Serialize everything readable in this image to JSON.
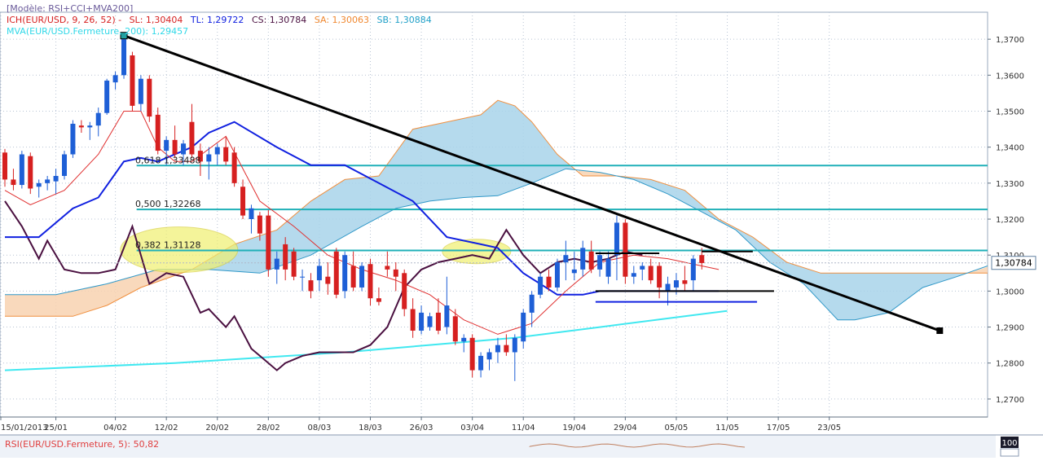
{
  "legend": {
    "model": "[Modèle: RSI+CCI+MVA200]",
    "ich_label": "ICH(EUR/USD, 9, 26, 52) -",
    "sl": "SL: 1,30404",
    "tl": "TL: 1,29722",
    "cs": "CS: 1,30784",
    "sa": "SA: 1,30063",
    "sb": "SB: 1,30884",
    "mva": "MVA(EUR/USD.Fermeture, 200): 1,29457"
  },
  "fib_labels": {
    "f618": "0,618 1,33488",
    "f500": "0,500 1,32268",
    "f382": "0,382 1,31128"
  },
  "price_badge": "1,30784",
  "rsi_label": "RSI(EUR/USD.Fermeture, 5): 50,82",
  "rsi_axis_value": "100",
  "colors": {
    "background": "#ffffff",
    "grid": "#b8c4d4",
    "up": "#1e5fd6",
    "down": "#d62020",
    "kijun": "#1020e0",
    "tenkan": "#e03030",
    "chikou": "#4a1040",
    "mva": "#40e8f0",
    "cloud_blue": "#a8d4ea",
    "cloud_orange": "#f8d2b0",
    "fib": "#20b0b8",
    "trend": "#000000",
    "highlight": "#f0f070"
  },
  "chart_data": {
    "type": "candlestick",
    "title": "",
    "y_range": [
      1.265,
      1.3775
    ],
    "y_ticks": [
      "1,2700",
      "1,2800",
      "1,2900",
      "1,3000",
      "1,3100",
      "1,3200",
      "1,3300",
      "1,3400",
      "1,3500",
      "1,3600",
      "1,3700"
    ],
    "x_ticks": [
      {
        "label": "15/01/2013",
        "i": -2
      },
      {
        "label": "25/01",
        "i": 6
      },
      {
        "label": "04/02",
        "i": 13
      },
      {
        "label": "12/02",
        "i": 19
      },
      {
        "label": "20/02",
        "i": 25
      },
      {
        "label": "28/02",
        "i": 31
      },
      {
        "label": "08/03",
        "i": 37
      },
      {
        "label": "18/03",
        "i": 43
      },
      {
        "label": "26/03",
        "i": 49
      },
      {
        "label": "03/04",
        "i": 55
      },
      {
        "label": "11/04",
        "i": 61
      },
      {
        "label": "19/04",
        "i": 67
      },
      {
        "label": "29/04",
        "i": 73
      },
      {
        "label": "05/05",
        "i": 79
      },
      {
        "label": "11/05",
        "i": 85
      },
      {
        "label": "17/05",
        "i": 91
      },
      {
        "label": "23/05",
        "i": 97
      }
    ],
    "candles": [
      [
        1.3385,
        1.3395,
        1.329,
        1.331
      ],
      [
        1.331,
        1.334,
        1.328,
        1.3295
      ],
      [
        1.3295,
        1.339,
        1.3285,
        1.338
      ],
      [
        1.3375,
        1.3385,
        1.327,
        1.3285
      ],
      [
        1.329,
        1.331,
        1.326,
        1.33
      ],
      [
        1.33,
        1.332,
        1.328,
        1.331
      ],
      [
        1.3305,
        1.334,
        1.327,
        1.332
      ],
      [
        1.332,
        1.339,
        1.331,
        1.338
      ],
      [
        1.338,
        1.3475,
        1.337,
        1.3465
      ],
      [
        1.346,
        1.3475,
        1.344,
        1.3455
      ],
      [
        1.3455,
        1.347,
        1.342,
        1.346
      ],
      [
        1.346,
        1.351,
        1.343,
        1.3495
      ],
      [
        1.3495,
        1.359,
        1.349,
        1.3585
      ],
      [
        1.358,
        1.361,
        1.356,
        1.36
      ],
      [
        1.36,
        1.371,
        1.359,
        1.37
      ],
      [
        1.3655,
        1.3665,
        1.35,
        1.3515
      ],
      [
        1.352,
        1.36,
        1.35,
        1.359
      ],
      [
        1.359,
        1.36,
        1.347,
        1.3485
      ],
      [
        1.349,
        1.351,
        1.338,
        1.339
      ],
      [
        1.339,
        1.343,
        1.335,
        1.342
      ],
      [
        1.342,
        1.346,
        1.337,
        1.338
      ],
      [
        1.338,
        1.342,
        1.335,
        1.341
      ],
      [
        1.347,
        1.352,
        1.337,
        1.338
      ],
      [
        1.339,
        1.341,
        1.332,
        1.336
      ],
      [
        1.336,
        1.34,
        1.331,
        1.338
      ],
      [
        1.338,
        1.341,
        1.335,
        1.34
      ],
      [
        1.34,
        1.343,
        1.335,
        1.336
      ],
      [
        1.3385,
        1.34,
        1.329,
        1.33
      ],
      [
        1.329,
        1.331,
        1.32,
        1.321
      ],
      [
        1.32,
        1.324,
        1.316,
        1.323
      ],
      [
        1.321,
        1.322,
        1.314,
        1.316
      ],
      [
        1.321,
        1.3225,
        1.304,
        1.306
      ],
      [
        1.306,
        1.311,
        1.302,
        1.309
      ],
      [
        1.313,
        1.315,
        1.303,
        1.306
      ],
      [
        1.311,
        1.312,
        1.303,
        1.304
      ],
      [
        1.304,
        1.306,
        1.3,
        1.304
      ],
      [
        1.303,
        1.305,
        1.298,
        1.3
      ],
      [
        1.303,
        1.309,
        1.3,
        1.307
      ],
      [
        1.304,
        1.308,
        1.299,
        1.302
      ],
      [
        1.311,
        1.312,
        1.298,
        1.299
      ],
      [
        1.3,
        1.311,
        1.298,
        1.31
      ],
      [
        1.307,
        1.311,
        1.3,
        1.301
      ],
      [
        1.301,
        1.308,
        1.3,
        1.307
      ],
      [
        1.3075,
        1.309,
        1.296,
        1.298
      ],
      [
        1.298,
        1.301,
        1.296,
        1.297
      ],
      [
        1.307,
        1.311,
        1.304,
        1.306
      ],
      [
        1.306,
        1.308,
        1.3,
        1.304
      ],
      [
        1.305,
        1.306,
        1.293,
        1.295
      ],
      [
        1.295,
        1.298,
        1.287,
        1.289
      ],
      [
        1.289,
        1.296,
        1.288,
        1.294
      ],
      [
        1.29,
        1.294,
        1.289,
        1.293
      ],
      [
        1.294,
        1.298,
        1.288,
        1.289
      ],
      [
        1.29,
        1.304,
        1.288,
        1.296
      ],
      [
        1.293,
        1.295,
        1.285,
        1.286
      ],
      [
        1.286,
        1.288,
        1.283,
        1.287
      ],
      [
        1.287,
        1.288,
        1.276,
        1.278
      ],
      [
        1.278,
        1.283,
        1.276,
        1.282
      ],
      [
        1.281,
        1.284,
        1.278,
        1.283
      ],
      [
        1.283,
        1.287,
        1.28,
        1.285
      ],
      [
        1.285,
        1.288,
        1.282,
        1.283
      ],
      [
        1.283,
        1.288,
        1.275,
        1.287
      ],
      [
        1.286,
        1.295,
        1.284,
        1.294
      ],
      [
        1.294,
        1.3,
        1.29,
        1.299
      ],
      [
        1.299,
        1.305,
        1.298,
        1.304
      ],
      [
        1.304,
        1.306,
        1.3,
        1.301
      ],
      [
        1.301,
        1.309,
        1.3,
        1.308
      ],
      [
        1.308,
        1.314,
        1.303,
        1.31
      ],
      [
        1.305,
        1.311,
        1.303,
        1.306
      ],
      [
        1.306,
        1.314,
        1.304,
        1.312
      ],
      [
        1.311,
        1.314,
        1.305,
        1.306
      ],
      [
        1.306,
        1.311,
        1.304,
        1.31
      ],
      [
        1.304,
        1.311,
        1.302,
        1.309
      ],
      [
        1.31,
        1.321,
        1.303,
        1.319
      ],
      [
        1.319,
        1.32,
        1.302,
        1.304
      ],
      [
        1.304,
        1.307,
        1.302,
        1.305
      ],
      [
        1.306,
        1.308,
        1.303,
        1.307
      ],
      [
        1.307,
        1.309,
        1.302,
        1.303
      ],
      [
        1.307,
        1.308,
        1.298,
        1.301
      ],
      [
        1.3,
        1.304,
        1.296,
        1.302
      ],
      [
        1.301,
        1.305,
        1.299,
        1.303
      ],
      [
        1.303,
        1.307,
        1.3,
        1.302
      ],
      [
        1.303,
        1.31,
        1.3,
        1.309
      ],
      [
        1.31,
        1.312,
        1.306,
        1.3078
      ]
    ],
    "candle_x": {
      "first_x": 6,
      "step": 10.43
    },
    "tenkan": [
      [
        0,
        1.328
      ],
      [
        3,
        1.324
      ],
      [
        7,
        1.328
      ],
      [
        11,
        1.338
      ],
      [
        14,
        1.35
      ],
      [
        16,
        1.35
      ],
      [
        18,
        1.34
      ],
      [
        20,
        1.336
      ],
      [
        22,
        1.336
      ],
      [
        26,
        1.343
      ],
      [
        30,
        1.325
      ],
      [
        34,
        1.318
      ],
      [
        38,
        1.31
      ],
      [
        42,
        1.306
      ],
      [
        46,
        1.303
      ],
      [
        50,
        1.299
      ],
      [
        54,
        1.292
      ],
      [
        58,
        1.288
      ],
      [
        62,
        1.291
      ],
      [
        66,
        1.3
      ],
      [
        70,
        1.308
      ],
      [
        74,
        1.31
      ],
      [
        78,
        1.309
      ],
      [
        82,
        1.307
      ],
      [
        84,
        1.306
      ]
    ],
    "kijun": [
      [
        0,
        1.315
      ],
      [
        4,
        1.315
      ],
      [
        8,
        1.323
      ],
      [
        11,
        1.326
      ],
      [
        14,
        1.336
      ],
      [
        16,
        1.337
      ],
      [
        18,
        1.336
      ],
      [
        22,
        1.34
      ],
      [
        24,
        1.344
      ],
      [
        27,
        1.347
      ],
      [
        32,
        1.34
      ],
      [
        36,
        1.335
      ],
      [
        40,
        1.335
      ],
      [
        44,
        1.33
      ],
      [
        48,
        1.325
      ],
      [
        52,
        1.315
      ],
      [
        56,
        1.313
      ],
      [
        58,
        1.312
      ],
      [
        61,
        1.305
      ],
      [
        65,
        1.299
      ],
      [
        68,
        1.299
      ],
      [
        70,
        1.3
      ],
      [
        72,
        1.3
      ],
      [
        76,
        1.3
      ],
      [
        80,
        1.3
      ],
      [
        84,
        1.3
      ]
    ],
    "chikou": [
      [
        0,
        1.325
      ],
      [
        2,
        1.318
      ],
      [
        4,
        1.309
      ],
      [
        5,
        1.314
      ],
      [
        7,
        1.306
      ],
      [
        9,
        1.305
      ],
      [
        11,
        1.305
      ],
      [
        13,
        1.306
      ],
      [
        15,
        1.318
      ],
      [
        17,
        1.302
      ],
      [
        19,
        1.305
      ],
      [
        21,
        1.304
      ],
      [
        23,
        1.294
      ],
      [
        24,
        1.295
      ],
      [
        26,
        1.29
      ],
      [
        27,
        1.293
      ],
      [
        29,
        1.284
      ],
      [
        30,
        1.282
      ],
      [
        32,
        1.278
      ],
      [
        33,
        1.28
      ],
      [
        35,
        1.282
      ],
      [
        37,
        1.283
      ],
      [
        39,
        1.283
      ],
      [
        41,
        1.283
      ],
      [
        43,
        1.285
      ],
      [
        45,
        1.29
      ],
      [
        47,
        1.301
      ],
      [
        49,
        1.306
      ],
      [
        51,
        1.308
      ],
      [
        53,
        1.309
      ],
      [
        55,
        1.31
      ],
      [
        57,
        1.309
      ],
      [
        59,
        1.317
      ],
      [
        61,
        1.31
      ],
      [
        63,
        1.305
      ],
      [
        65,
        1.308
      ],
      [
        67,
        1.309
      ],
      [
        69,
        1.308
      ],
      [
        71,
        1.309
      ],
      [
        73,
        1.311
      ],
      [
        75,
        1.31
      ]
    ],
    "mva200": [
      [
        0,
        1.278
      ],
      [
        20,
        1.28
      ],
      [
        40,
        1.283
      ],
      [
        60,
        1.287
      ],
      [
        70,
        1.29
      ],
      [
        80,
        1.293
      ],
      [
        85,
        1.2945
      ]
    ],
    "cloud_span_a": [
      [
        0,
        1.293
      ],
      [
        8,
        1.293
      ],
      [
        12,
        1.296
      ],
      [
        16,
        1.301
      ],
      [
        22,
        1.306
      ],
      [
        27,
        1.313
      ],
      [
        32,
        1.317
      ],
      [
        36,
        1.325
      ],
      [
        40,
        1.331
      ],
      [
        44,
        1.332
      ],
      [
        48,
        1.345
      ],
      [
        52,
        1.347
      ],
      [
        56,
        1.349
      ],
      [
        58,
        1.353
      ],
      [
        60,
        1.3515
      ],
      [
        62,
        1.347
      ],
      [
        65,
        1.338
      ],
      [
        68,
        1.332
      ],
      [
        72,
        1.332
      ],
      [
        76,
        1.331
      ],
      [
        80,
        1.328
      ],
      [
        84,
        1.32
      ],
      [
        88,
        1.315
      ],
      [
        92,
        1.308
      ],
      [
        96,
        1.305
      ],
      [
        100,
        1.305
      ],
      [
        104,
        1.305
      ],
      [
        108,
        1.305
      ],
      [
        112,
        1.305
      ],
      [
        116,
        1.305
      ]
    ],
    "cloud_span_b": [
      [
        0,
        1.299
      ],
      [
        6,
        1.299
      ],
      [
        12,
        1.302
      ],
      [
        18,
        1.306
      ],
      [
        24,
        1.306
      ],
      [
        30,
        1.305
      ],
      [
        36,
        1.31
      ],
      [
        42,
        1.318
      ],
      [
        46,
        1.323
      ],
      [
        50,
        1.325
      ],
      [
        54,
        1.326
      ],
      [
        58,
        1.3265
      ],
      [
        62,
        1.33
      ],
      [
        66,
        1.334
      ],
      [
        70,
        1.333
      ],
      [
        74,
        1.331
      ],
      [
        78,
        1.327
      ],
      [
        82,
        1.322
      ],
      [
        86,
        1.317
      ],
      [
        90,
        1.308
      ],
      [
        94,
        1.302
      ],
      [
        98,
        1.292
      ],
      [
        100,
        1.292
      ],
      [
        104,
        1.294
      ],
      [
        108,
        1.301
      ],
      [
        112,
        1.304
      ],
      [
        116,
        1.307
      ]
    ],
    "fib_levels": [
      1.33488,
      1.32268,
      1.31128
    ],
    "trendline": [
      [
        14,
        1.371
      ],
      [
        110,
        1.289
      ]
    ],
    "current_price": 1.30784,
    "rsi_value": 50.82
  }
}
